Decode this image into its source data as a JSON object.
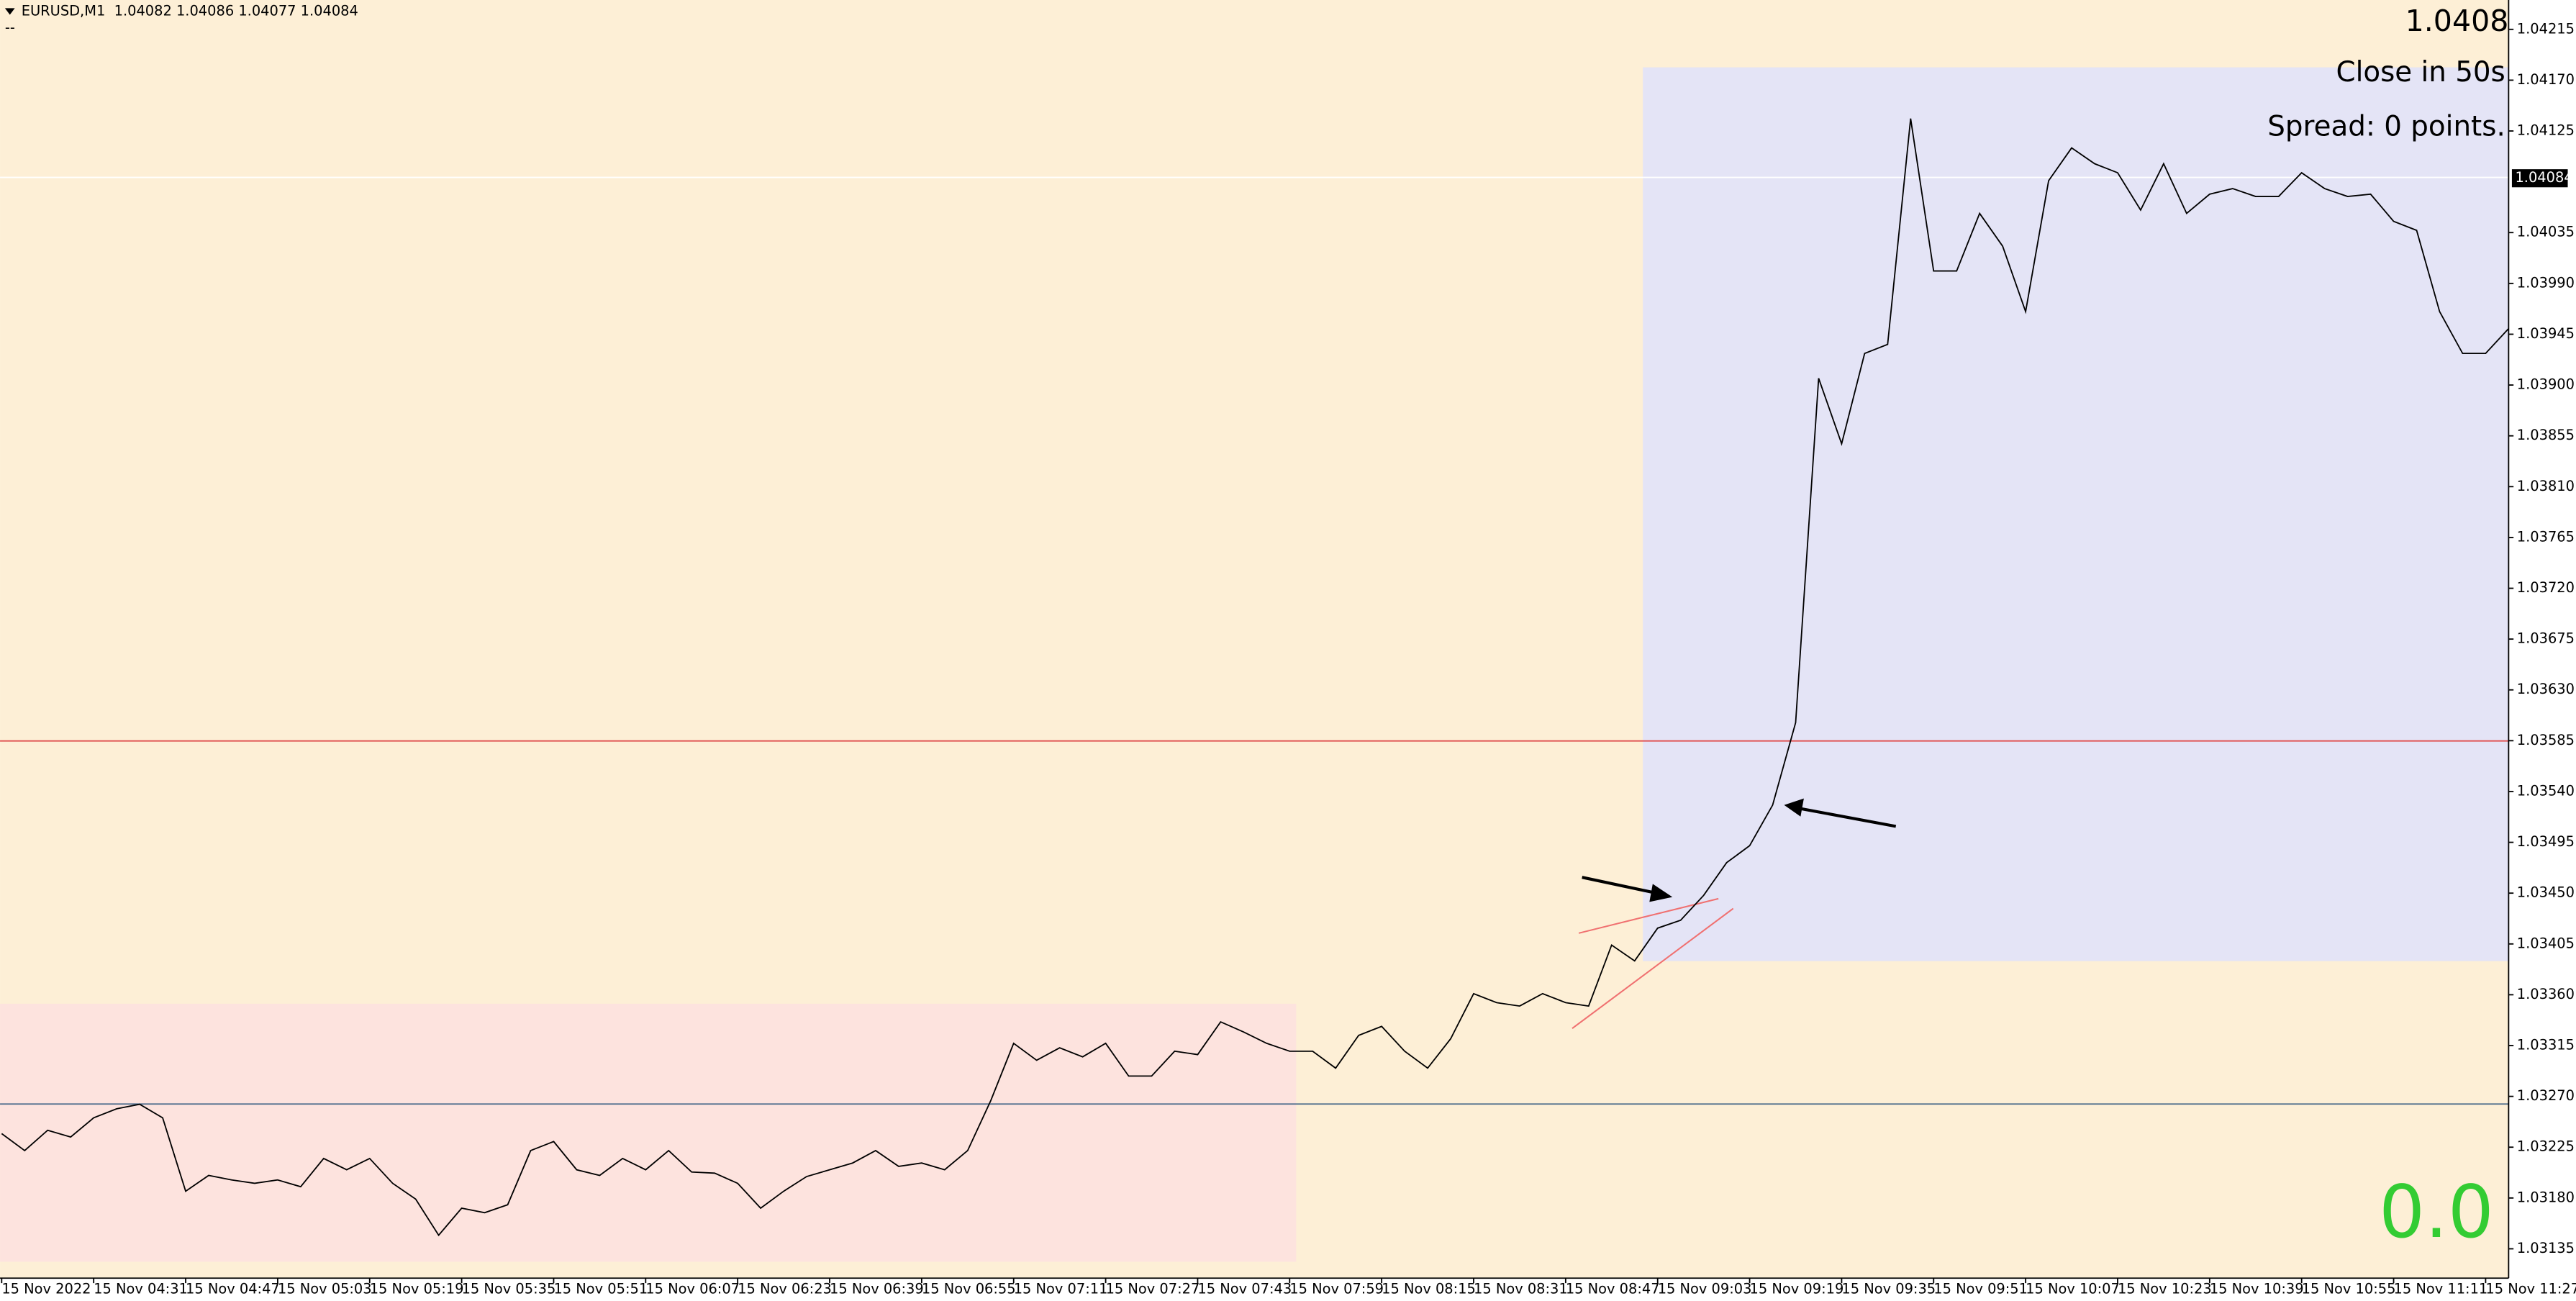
{
  "chart_data": {
    "type": "line",
    "title": "EURUSD,M1  1.04082 1.04086 1.04077 1.04084",
    "subtitle": "--",
    "info": {
      "price": "1.0408",
      "timer": "Close in 50s",
      "spread": "Spread: 0 points.",
      "profit": "0.0",
      "bid_tag": "1.04084"
    },
    "color": "#000000",
    "categories": [
      "15 Nov 2022",
      null,
      null,
      null,
      "15 Nov 04:31",
      null,
      null,
      null,
      "15 Nov 04:47",
      null,
      null,
      null,
      "15 Nov 05:03",
      null,
      null,
      null,
      "15 Nov 05:19",
      null,
      null,
      null,
      "15 Nov 05:35",
      null,
      null,
      null,
      "15 Nov 05:51",
      null,
      null,
      null,
      "15 Nov 06:07",
      null,
      null,
      null,
      "15 Nov 06:23",
      null,
      null,
      null,
      "15 Nov 06:39",
      null,
      null,
      null,
      "15 Nov 06:55",
      null,
      null,
      null,
      "15 Nov 07:11",
      null,
      null,
      null,
      "15 Nov 07:27",
      null,
      null,
      null,
      "15 Nov 07:43",
      null,
      null,
      null,
      "15 Nov 07:59",
      null,
      null,
      null,
      "15 Nov 08:15",
      null,
      null,
      null,
      "15 Nov 08:31",
      null,
      null,
      null,
      "15 Nov 08:47",
      null,
      null,
      null,
      "15 Nov 09:03",
      null,
      null,
      null,
      "15 Nov 09:19",
      null,
      null,
      null,
      "15 Nov 09:35",
      null,
      null,
      null,
      "15 Nov 09:51",
      null,
      null,
      null,
      "15 Nov 10:07",
      null,
      null,
      null,
      "15 Nov 10:23",
      null,
      null,
      null,
      "15 Nov 10:39",
      null,
      null,
      null,
      "15 Nov 10:55",
      null,
      null,
      null,
      "15 Nov 11:11",
      null,
      null,
      null,
      "15 Nov 11:27",
      null
    ],
    "values": [
      1.03237,
      1.03222,
      1.0324,
      1.03234,
      1.03251,
      1.03259,
      1.03263,
      1.03251,
      1.03186,
      1.032,
      1.03196,
      1.03193,
      1.03196,
      1.0319,
      1.03215,
      1.03205,
      1.03215,
      1.03193,
      1.03179,
      1.03147,
      1.03171,
      1.03167,
      1.03174,
      1.03222,
      1.0323,
      1.03205,
      1.032,
      1.03215,
      1.03205,
      1.03222,
      1.03203,
      1.03202,
      1.03193,
      1.03171,
      1.03186,
      1.03199,
      1.03205,
      1.03211,
      1.03222,
      1.03208,
      1.03211,
      1.03205,
      1.03222,
      1.03266,
      1.03317,
      1.03302,
      1.03313,
      1.03305,
      1.03317,
      1.03288,
      1.03288,
      1.0331,
      1.03307,
      1.03336,
      1.03327,
      1.03317,
      1.0331,
      1.0331,
      1.03295,
      1.03324,
      1.03332,
      1.0331,
      1.03295,
      1.03321,
      1.03361,
      1.03353,
      1.0335,
      1.03361,
      1.03353,
      1.0335,
      1.03404,
      1.0339,
      1.03419,
      1.03426,
      1.03448,
      1.03477,
      1.03492,
      1.03528,
      1.03601,
      1.03906,
      1.03848,
      1.03928,
      1.03936,
      1.04136,
      1.04001,
      1.04001,
      1.04052,
      1.04023,
      1.03965,
      1.04081,
      1.0411,
      1.04096,
      1.04088,
      1.04055,
      1.04096,
      1.04052,
      1.04069,
      1.04074,
      1.04067,
      1.04067,
      1.04088,
      1.04074,
      1.04067,
      1.04069,
      1.04045,
      1.04037,
      1.03965,
      1.03928,
      1.03928,
      1.0395
    ],
    "ylim": [
      1.03109,
      1.04241
    ],
    "yticks": [
      1.04215,
      {
        "value": 1.0417,
        "label": "1.04170"
      },
      1.04125,
      1.04035,
      {
        "value": 1.0399,
        "label": "1.03990"
      },
      1.03945,
      {
        "value": 1.039,
        "label": "1.03900"
      },
      1.03855,
      {
        "value": 1.0381,
        "label": "1.03810"
      },
      1.03765,
      {
        "value": 1.0372,
        "label": "1.03720"
      },
      1.03675,
      {
        "value": 1.0363,
        "label": "1.03630"
      },
      1.03585,
      {
        "value": 1.0354,
        "label": "1.03540"
      },
      1.03495,
      {
        "value": 1.0345,
        "label": "1.03450"
      },
      1.03405,
      {
        "value": 1.0336,
        "label": "1.03360"
      },
      1.03315,
      {
        "value": 1.0327,
        "label": "1.03270"
      },
      1.03225,
      {
        "value": 1.0318,
        "label": "1.03180"
      },
      1.03135
    ],
    "grid": false
  }
}
